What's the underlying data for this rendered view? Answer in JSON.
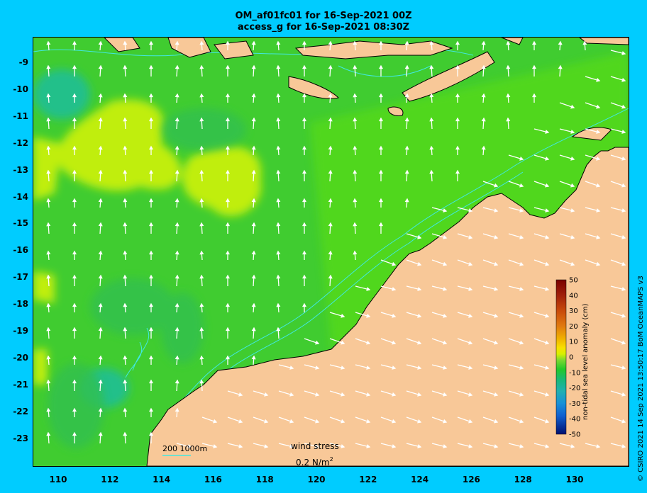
{
  "title": {
    "line1": "OM_af01fc01 for 16-Sep-2021 00Z",
    "line2": "access_g for 16-Sep-2021 08:30Z"
  },
  "axes": {
    "y_ticks": [
      "-9",
      "-10",
      "-11",
      "-12",
      "-13",
      "-14",
      "-15",
      "-16",
      "-17",
      "-18",
      "-19",
      "-20",
      "-21",
      "-22",
      "-23"
    ],
    "x_ticks": [
      "110",
      "112",
      "114",
      "116",
      "118",
      "120",
      "122",
      "124",
      "126",
      "128",
      "130"
    ],
    "lon_range": [
      109,
      132
    ],
    "lat_range": [
      -8.1,
      -24.8
    ]
  },
  "colorbar": {
    "label": "non-tidal sea level anomaly (cm)",
    "ticks": [
      "50",
      "40",
      "30",
      "20",
      "10",
      "0",
      "-10",
      "-20",
      "-30",
      "-40",
      "-50"
    ],
    "colors": [
      "#7a0000",
      "#a0200a",
      "#c84a0a",
      "#e07a10",
      "#f0b000",
      "#f8e000",
      "#d8f000",
      "#a8e830",
      "#60d840",
      "#22c82a",
      "#18b87a",
      "#20b0b0",
      "#1890d8",
      "#1060d0",
      "#0830a8",
      "#001070"
    ]
  },
  "legend": {
    "contour_label": "200  1000m",
    "wind_title": "wind stress",
    "wind_scale_value": "0.2 N/m",
    "wind_scale_exp": "2"
  },
  "credit": "© CSIRO 2021  14 Sep 2021 13:50:17 BoM OceanMAPS v3",
  "colors": {
    "land": "#f8c898",
    "sea_base": "#40cc30",
    "sea_high": "#c0ee10",
    "sea_low": "#22c08a",
    "bathymetry": "#40e8e0",
    "arrow": "#ffffff",
    "background": "#00ccff"
  }
}
